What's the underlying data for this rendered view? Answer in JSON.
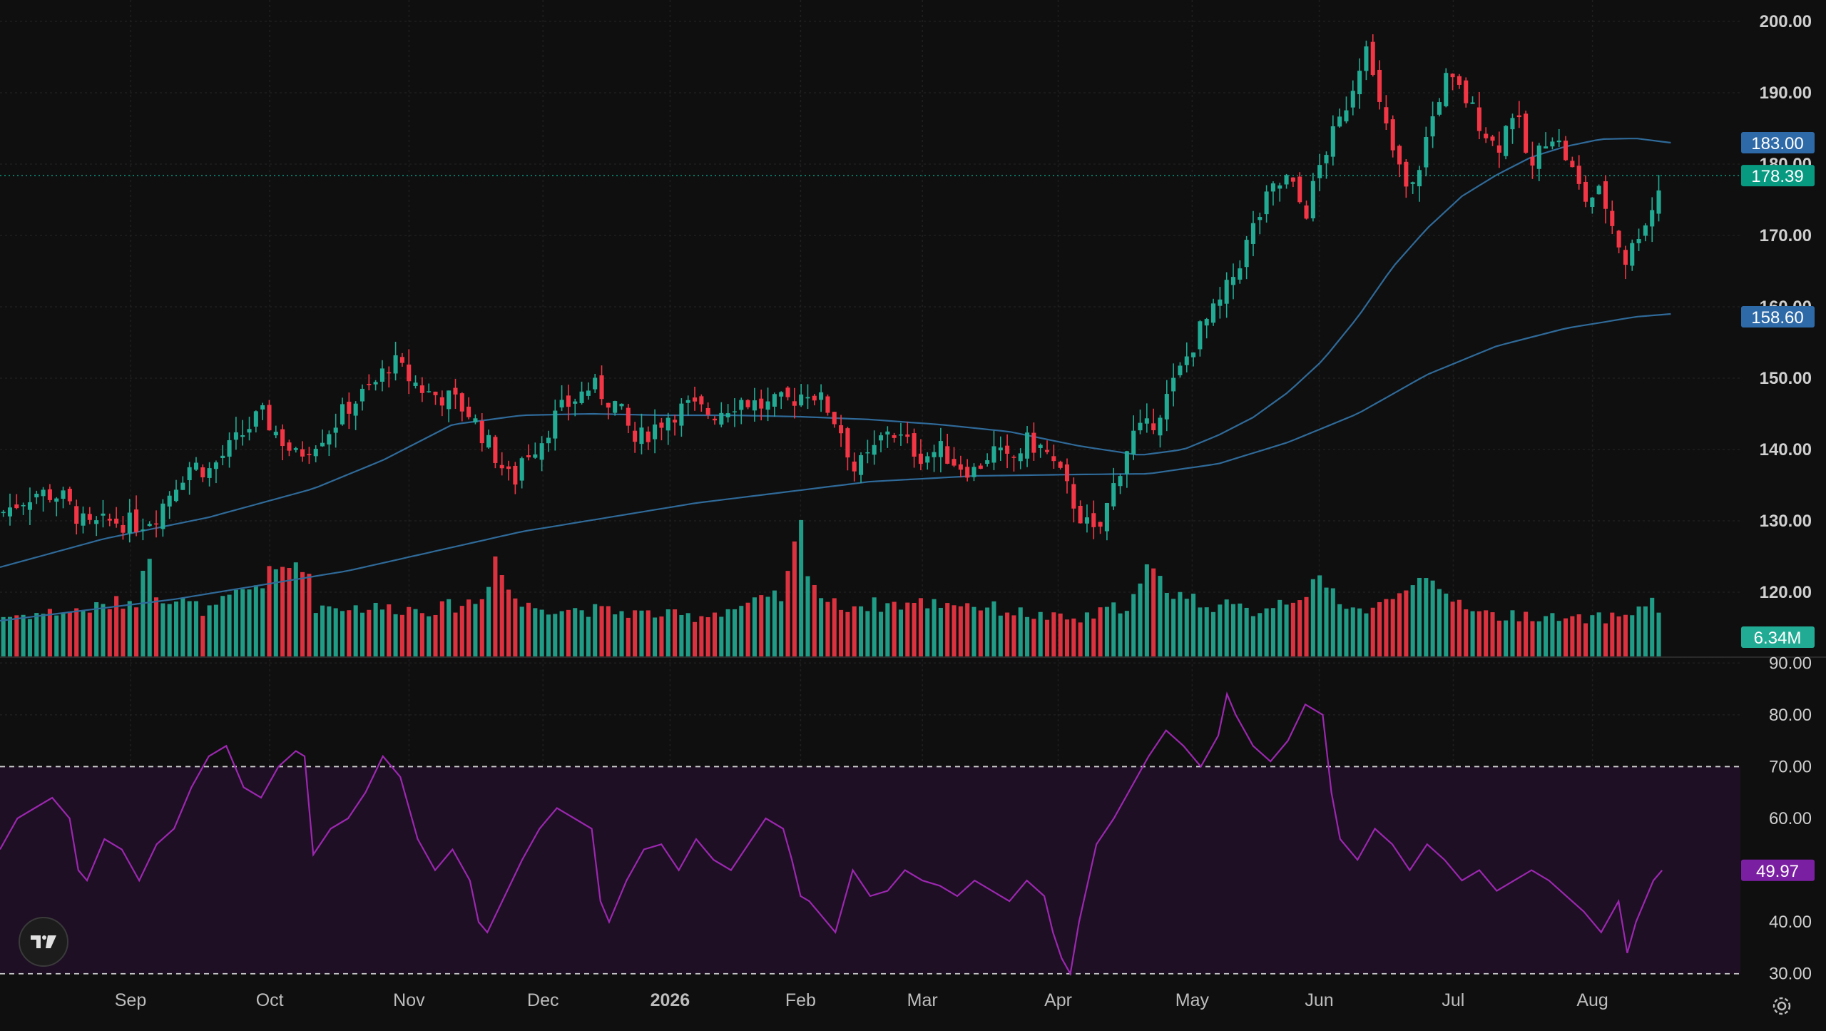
{
  "chart_data": {
    "type": "candlestick",
    "interval": "daily",
    "price_axis": {
      "ticks": [
        "200.00",
        "190.00",
        "180.00",
        "170.00",
        "160.00",
        "150.00",
        "140.00",
        "130.00",
        "120.00"
      ],
      "range": [
        111,
        202
      ]
    },
    "time_axis": {
      "labels": [
        "Sep",
        "Oct",
        "Nov",
        "Dec",
        "2026",
        "Feb",
        "Mar",
        "Apr",
        "May",
        "Jun",
        "Jul",
        "Aug"
      ]
    },
    "last_price": {
      "value": 178.39,
      "label": "178.39",
      "color": "#089981"
    },
    "ma_fast": {
      "label": "183.00",
      "color": "#2f6a99",
      "badge_color": "#2f6aa8",
      "points": [
        [
          0,
          123.5
        ],
        [
          0.06,
          127.5
        ],
        [
          0.12,
          130.5
        ],
        [
          0.18,
          134.5
        ],
        [
          0.22,
          138.5
        ],
        [
          0.26,
          143.5
        ],
        [
          0.3,
          144.8
        ],
        [
          0.34,
          145.0
        ],
        [
          0.38,
          144.8
        ],
        [
          0.42,
          144.8
        ],
        [
          0.46,
          144.6
        ],
        [
          0.5,
          144.2
        ],
        [
          0.54,
          143.5
        ],
        [
          0.58,
          142.5
        ],
        [
          0.62,
          140.5
        ],
        [
          0.655,
          139.2
        ],
        [
          0.68,
          140.0
        ],
        [
          0.7,
          142.0
        ],
        [
          0.72,
          144.5
        ],
        [
          0.74,
          148.0
        ],
        [
          0.76,
          152.5
        ],
        [
          0.78,
          158.5
        ],
        [
          0.8,
          165.5
        ],
        [
          0.82,
          171.0
        ],
        [
          0.84,
          175.5
        ],
        [
          0.86,
          178.5
        ],
        [
          0.88,
          181.0
        ],
        [
          0.9,
          182.5
        ],
        [
          0.92,
          183.5
        ],
        [
          0.94,
          183.6
        ],
        [
          0.96,
          183.0
        ]
      ]
    },
    "ma_slow": {
      "label": "158.60",
      "color": "#2f6a99",
      "badge_color": "#2f6aa8",
      "points": [
        [
          0,
          116.0
        ],
        [
          0.1,
          119.0
        ],
        [
          0.2,
          123.0
        ],
        [
          0.3,
          128.5
        ],
        [
          0.4,
          132.5
        ],
        [
          0.5,
          135.5
        ],
        [
          0.56,
          136.3
        ],
        [
          0.62,
          136.5
        ],
        [
          0.66,
          136.6
        ],
        [
          0.7,
          138.0
        ],
        [
          0.74,
          141.0
        ],
        [
          0.78,
          145.0
        ],
        [
          0.82,
          150.5
        ],
        [
          0.86,
          154.5
        ],
        [
          0.9,
          157.0
        ],
        [
          0.94,
          158.6
        ],
        [
          0.96,
          159.0
        ]
      ]
    },
    "price_path": [
      [
        0,
        131
      ],
      [
        0.02,
        134
      ],
      [
        0.035,
        133.5
      ],
      [
        0.05,
        129
      ],
      [
        0.065,
        130
      ],
      [
        0.08,
        129.5
      ],
      [
        0.09,
        131
      ],
      [
        0.1,
        135
      ],
      [
        0.11,
        138
      ],
      [
        0.12,
        137
      ],
      [
        0.135,
        141
      ],
      [
        0.15,
        145
      ],
      [
        0.16,
        142
      ],
      [
        0.17,
        139
      ],
      [
        0.18,
        141
      ],
      [
        0.19,
        143
      ],
      [
        0.2,
        146
      ],
      [
        0.215,
        149
      ],
      [
        0.225,
        152.5
      ],
      [
        0.235,
        150
      ],
      [
        0.245,
        148
      ],
      [
        0.26,
        147
      ],
      [
        0.27,
        145
      ],
      [
        0.28,
        141
      ],
      [
        0.29,
        137
      ],
      [
        0.295,
        135
      ],
      [
        0.3,
        139
      ],
      [
        0.31,
        141
      ],
      [
        0.32,
        145
      ],
      [
        0.33,
        147
      ],
      [
        0.34,
        149
      ],
      [
        0.355,
        146
      ],
      [
        0.365,
        141
      ],
      [
        0.375,
        143
      ],
      [
        0.385,
        145
      ],
      [
        0.395,
        146
      ],
      [
        0.41,
        145
      ],
      [
        0.425,
        147
      ],
      [
        0.44,
        146
      ],
      [
        0.455,
        147
      ],
      [
        0.465,
        148.5
      ],
      [
        0.475,
        146
      ],
      [
        0.485,
        142
      ],
      [
        0.49,
        137
      ],
      [
        0.5,
        139
      ],
      [
        0.51,
        143
      ],
      [
        0.52,
        141
      ],
      [
        0.53,
        139
      ],
      [
        0.54,
        140
      ],
      [
        0.55,
        138
      ],
      [
        0.56,
        137
      ],
      [
        0.57,
        140
      ],
      [
        0.58,
        138
      ],
      [
        0.59,
        141
      ],
      [
        0.6,
        140
      ],
      [
        0.61,
        136
      ],
      [
        0.62,
        131
      ],
      [
        0.63,
        127.5
      ],
      [
        0.64,
        135
      ],
      [
        0.65,
        142
      ],
      [
        0.66,
        143
      ],
      [
        0.67,
        147
      ],
      [
        0.68,
        152
      ],
      [
        0.69,
        157
      ],
      [
        0.7,
        160
      ],
      [
        0.71,
        165
      ],
      [
        0.72,
        171
      ],
      [
        0.73,
        176
      ],
      [
        0.74,
        178
      ],
      [
        0.75,
        173
      ],
      [
        0.76,
        181
      ],
      [
        0.77,
        186
      ],
      [
        0.78,
        193
      ],
      [
        0.785,
        198
      ],
      [
        0.79,
        190
      ],
      [
        0.8,
        182
      ],
      [
        0.81,
        175
      ],
      [
        0.82,
        184
      ],
      [
        0.83,
        192
      ],
      [
        0.84,
        190
      ],
      [
        0.85,
        186
      ],
      [
        0.86,
        182
      ],
      [
        0.87,
        188
      ],
      [
        0.875,
        183
      ],
      [
        0.88,
        179
      ],
      [
        0.89,
        185
      ],
      [
        0.9,
        181
      ],
      [
        0.91,
        175
      ],
      [
        0.92,
        176
      ],
      [
        0.93,
        169
      ],
      [
        0.935,
        166
      ],
      [
        0.94,
        170
      ],
      [
        0.95,
        174
      ],
      [
        0.955,
        178.39
      ]
    ],
    "volume": {
      "label": "6.34M",
      "last_color": "#22ab94",
      "up_color": "#22ab94",
      "down_color": "#f23645",
      "profile": [
        [
          0,
          0.22
        ],
        [
          0.05,
          0.26
        ],
        [
          0.08,
          0.32
        ],
        [
          0.086,
          0.62
        ],
        [
          0.09,
          0.35
        ],
        [
          0.12,
          0.25
        ],
        [
          0.175,
          0.55
        ],
        [
          0.18,
          0.28
        ],
        [
          0.25,
          0.26
        ],
        [
          0.28,
          0.32
        ],
        [
          0.283,
          0.75
        ],
        [
          0.286,
          0.52
        ],
        [
          0.29,
          0.4
        ],
        [
          0.3,
          0.28
        ],
        [
          0.4,
          0.22
        ],
        [
          0.45,
          0.33
        ],
        [
          0.46,
          0.72
        ],
        [
          0.465,
          0.48
        ],
        [
          0.47,
          0.35
        ],
        [
          0.48,
          0.28
        ],
        [
          0.55,
          0.3
        ],
        [
          0.6,
          0.22
        ],
        [
          0.62,
          0.2
        ],
        [
          0.65,
          0.3
        ],
        [
          0.66,
          0.48
        ],
        [
          0.67,
          0.38
        ],
        [
          0.69,
          0.3
        ],
        [
          0.72,
          0.25
        ],
        [
          0.74,
          0.32
        ],
        [
          0.76,
          0.4
        ],
        [
          0.78,
          0.25
        ],
        [
          0.8,
          0.3
        ],
        [
          0.81,
          0.46
        ],
        [
          0.82,
          0.38
        ],
        [
          0.84,
          0.3
        ],
        [
          0.86,
          0.22
        ],
        [
          0.88,
          0.23
        ],
        [
          0.9,
          0.2
        ],
        [
          0.93,
          0.22
        ],
        [
          0.95,
          0.3
        ],
        [
          0.96,
          0.14
        ]
      ]
    },
    "rsi": {
      "label": "49.97",
      "color": "#9c27b0",
      "badge_color": "#7b1fa2",
      "ticks": [
        "90.00",
        "80.00",
        "70.00",
        "60.00",
        "50.00",
        "40.00",
        "30.00"
      ],
      "range": [
        29,
        91
      ],
      "band": [
        30,
        70
      ],
      "points": [
        [
          0,
          54
        ],
        [
          0.01,
          60
        ],
        [
          0.02,
          62
        ],
        [
          0.03,
          64
        ],
        [
          0.04,
          60
        ],
        [
          0.045,
          50
        ],
        [
          0.05,
          48
        ],
        [
          0.06,
          56
        ],
        [
          0.07,
          54
        ],
        [
          0.08,
          48
        ],
        [
          0.09,
          55
        ],
        [
          0.1,
          58
        ],
        [
          0.11,
          66
        ],
        [
          0.12,
          72
        ],
        [
          0.13,
          74
        ],
        [
          0.14,
          66
        ],
        [
          0.15,
          64
        ],
        [
          0.16,
          70
        ],
        [
          0.17,
          73
        ],
        [
          0.175,
          72
        ],
        [
          0.18,
          53
        ],
        [
          0.19,
          58
        ],
        [
          0.2,
          60
        ],
        [
          0.21,
          65
        ],
        [
          0.22,
          72
        ],
        [
          0.23,
          68
        ],
        [
          0.24,
          56
        ],
        [
          0.25,
          50
        ],
        [
          0.26,
          54
        ],
        [
          0.27,
          48
        ],
        [
          0.275,
          40
        ],
        [
          0.28,
          38
        ],
        [
          0.29,
          45
        ],
        [
          0.3,
          52
        ],
        [
          0.31,
          58
        ],
        [
          0.32,
          62
        ],
        [
          0.33,
          60
        ],
        [
          0.34,
          58
        ],
        [
          0.345,
          44
        ],
        [
          0.35,
          40
        ],
        [
          0.36,
          48
        ],
        [
          0.37,
          54
        ],
        [
          0.38,
          55
        ],
        [
          0.39,
          50
        ],
        [
          0.4,
          56
        ],
        [
          0.41,
          52
        ],
        [
          0.42,
          50
        ],
        [
          0.43,
          55
        ],
        [
          0.44,
          60
        ],
        [
          0.45,
          58
        ],
        [
          0.455,
          52
        ],
        [
          0.46,
          45
        ],
        [
          0.465,
          44
        ],
        [
          0.47,
          42
        ],
        [
          0.48,
          38
        ],
        [
          0.49,
          50
        ],
        [
          0.5,
          45
        ],
        [
          0.51,
          46
        ],
        [
          0.52,
          50
        ],
        [
          0.53,
          48
        ],
        [
          0.54,
          47
        ],
        [
          0.55,
          45
        ],
        [
          0.56,
          48
        ],
        [
          0.57,
          46
        ],
        [
          0.58,
          44
        ],
        [
          0.59,
          48
        ],
        [
          0.6,
          45
        ],
        [
          0.605,
          38
        ],
        [
          0.61,
          33
        ],
        [
          0.615,
          30
        ],
        [
          0.62,
          40
        ],
        [
          0.63,
          55
        ],
        [
          0.64,
          60
        ],
        [
          0.65,
          66
        ],
        [
          0.66,
          72
        ],
        [
          0.67,
          77
        ],
        [
          0.68,
          74
        ],
        [
          0.69,
          70
        ],
        [
          0.7,
          76
        ],
        [
          0.705,
          84
        ],
        [
          0.71,
          80
        ],
        [
          0.72,
          74
        ],
        [
          0.73,
          71
        ],
        [
          0.74,
          75
        ],
        [
          0.75,
          82
        ],
        [
          0.76,
          80
        ],
        [
          0.765,
          65
        ],
        [
          0.77,
          56
        ],
        [
          0.78,
          52
        ],
        [
          0.79,
          58
        ],
        [
          0.8,
          55
        ],
        [
          0.81,
          50
        ],
        [
          0.82,
          55
        ],
        [
          0.83,
          52
        ],
        [
          0.84,
          48
        ],
        [
          0.85,
          50
        ],
        [
          0.86,
          46
        ],
        [
          0.87,
          48
        ],
        [
          0.88,
          50
        ],
        [
          0.89,
          48
        ],
        [
          0.9,
          45
        ],
        [
          0.91,
          42
        ],
        [
          0.92,
          38
        ],
        [
          0.93,
          44
        ],
        [
          0.935,
          34
        ],
        [
          0.94,
          40
        ],
        [
          0.95,
          48
        ],
        [
          0.955,
          49.97
        ]
      ]
    }
  }
}
